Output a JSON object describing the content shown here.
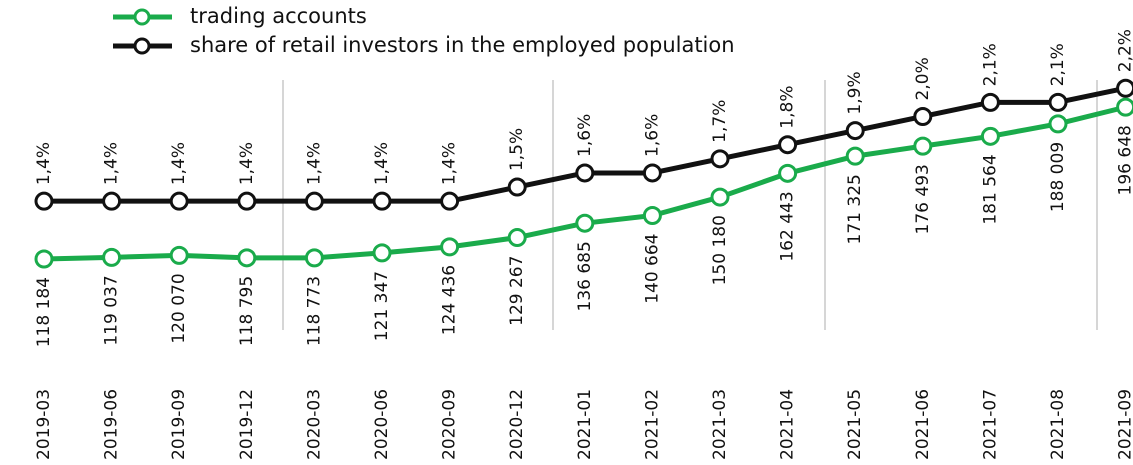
{
  "chart_data": {
    "type": "line",
    "categories": [
      "2019-03",
      "2019-06",
      "2019-09",
      "2019-12",
      "2020-03",
      "2020-06",
      "2020-09",
      "2020-12",
      "2021-01",
      "2021-02",
      "2021-03",
      "2021-04",
      "2021-05",
      "2021-06",
      "2021-07",
      "2021-08",
      "2021-09"
    ],
    "series": [
      {
        "name": "trading accounts",
        "color": "#1aab4b",
        "values": [
          118184,
          119037,
          120070,
          118795,
          118773,
          121347,
          124436,
          129267,
          136685,
          140664,
          150180,
          162443,
          171325,
          176493,
          181564,
          188009,
          196648
        ],
        "value_labels": [
          "118 184",
          "119 037",
          "120 070",
          "118 795",
          "118 773",
          "121 347",
          "124 436",
          "129 267",
          "136 685",
          "140 664",
          "150 180",
          "162 443",
          "171 325",
          "176 493",
          "181 564",
          "188 009",
          "196 648"
        ]
      },
      {
        "name": "share of retail investors in the employed population",
        "color": "#111111",
        "axis": "y2",
        "values": [
          1.4,
          1.4,
          1.4,
          1.4,
          1.4,
          1.4,
          1.4,
          1.5,
          1.6,
          1.6,
          1.7,
          1.8,
          1.9,
          2.0,
          2.1,
          2.1,
          2.2
        ],
        "value_labels": [
          "1,4%",
          "1,4%",
          "1,4%",
          "1,4%",
          "1,4%",
          "1,4%",
          "1,4%",
          "1,5%",
          "1,6%",
          "1,6%",
          "1,7%",
          "1,8%",
          "1,9%",
          "2,0%",
          "2,1%",
          "2,1%",
          "2,2%"
        ]
      }
    ],
    "ylim": [
      97000,
      221000
    ],
    "y2lim": [
      0.7,
      2.4
    ]
  }
}
